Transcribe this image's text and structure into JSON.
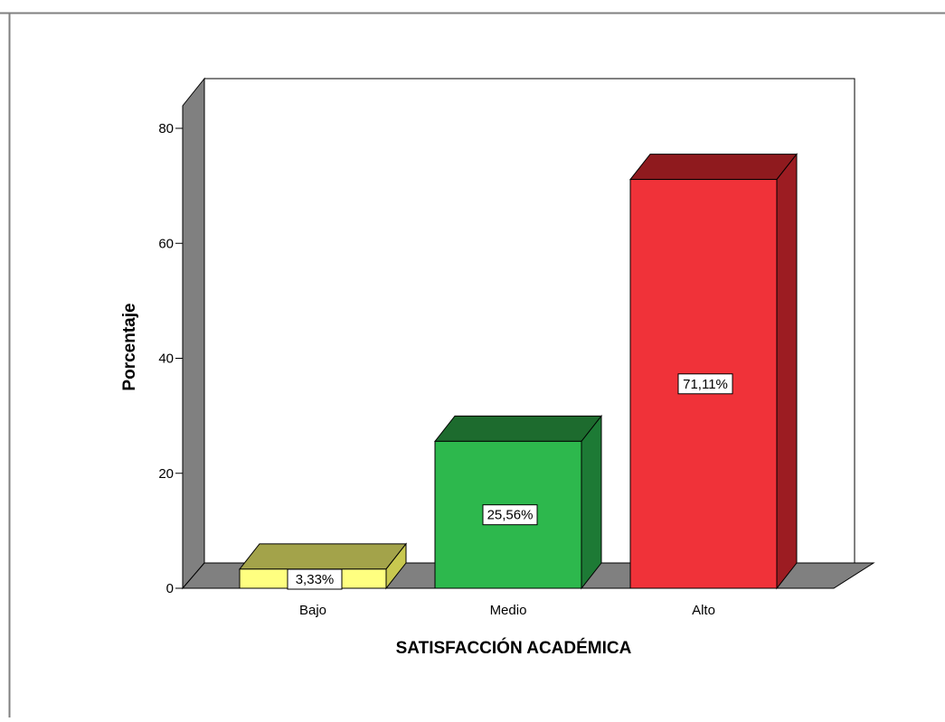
{
  "chart_data": {
    "type": "bar",
    "categories": [
      "Bajo",
      "Medio",
      "Alto"
    ],
    "values": [
      3.33,
      25.56,
      71.11
    ],
    "data_labels": [
      "3,33%",
      "25,56%",
      "71,11%"
    ],
    "xlabel": "SATISFACCIÓN ACADÉMICA",
    "ylabel": "Porcentaje",
    "ylim": [
      0,
      80
    ],
    "yticks": [
      0,
      20,
      40,
      60,
      80
    ],
    "grid": false,
    "three_d": true,
    "colors": {
      "Bajo": {
        "front": "#ffff80",
        "top": "#a3a34a",
        "side": "#c8c84f"
      },
      "Medio": {
        "front": "#2db84d",
        "top": "#1d6b2e",
        "side": "#1d7a35"
      },
      "Alto": {
        "front": "#f03239",
        "top": "#8f1a1e",
        "side": "#9c1c22"
      },
      "wall": "#808080",
      "floor": "#808080"
    }
  }
}
